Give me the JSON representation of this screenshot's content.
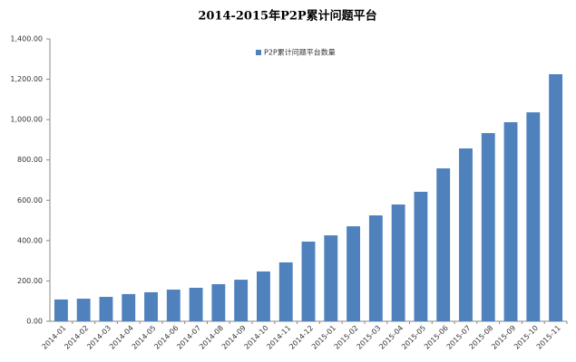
{
  "chart_data": {
    "type": "bar",
    "title": "2014-2015年P2P累计问题平台",
    "categories": [
      "2014-01",
      "2014-02",
      "2014-03",
      "2014-04",
      "2014-05",
      "2014-06",
      "2014-07",
      "2014-08",
      "2014-09",
      "2014-10",
      "2014-11",
      "2014-12",
      "2015-01",
      "2015-02",
      "2015-03",
      "2015-04",
      "2015-05",
      "2015-06",
      "2015-07",
      "2015-08",
      "2015-09",
      "2015-10",
      "2015-11"
    ],
    "series": [
      {
        "name": "P2P累计问题平台数量",
        "color": "#4f81bd",
        "values": [
          108,
          112,
          121,
          135,
          144,
          157,
          166,
          184,
          206,
          247,
          292,
          395,
          426,
          471,
          525,
          579,
          642,
          758,
          857,
          933,
          987,
          1036,
          1225
        ]
      }
    ],
    "ylim": [
      0,
      1400
    ],
    "yticks": [
      {
        "value": 0,
        "label": "0.00"
      },
      {
        "value": 200,
        "label": "200.00"
      },
      {
        "value": 400,
        "label": "400.00"
      },
      {
        "value": 600,
        "label": "600.00"
      },
      {
        "value": 800,
        "label": "800.00"
      },
      {
        "value": 1000,
        "label": "1,000.00"
      },
      {
        "value": 1200,
        "label": "1,200.00"
      },
      {
        "value": 1400,
        "label": "1,400.00"
      }
    ],
    "grid": false,
    "legend": "top"
  }
}
